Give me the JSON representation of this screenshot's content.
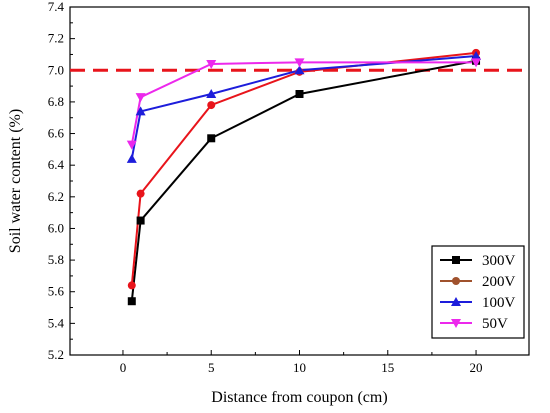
{
  "chart_data": {
    "type": "line",
    "xlabel": "Distance from coupon (cm)",
    "ylabel": "Soil water content (%)",
    "xlim": [
      -3,
      23
    ],
    "ylim": [
      5.2,
      7.4
    ],
    "xticks": [
      0,
      5,
      10,
      15,
      20
    ],
    "yticks": [
      5.2,
      5.4,
      5.6,
      5.8,
      6.0,
      6.2,
      6.4,
      6.6,
      6.8,
      7.0,
      7.2,
      7.4
    ],
    "reference_line": {
      "y": 7.0,
      "color": "#e8141b",
      "style": "dashed"
    },
    "legend_position": "bottom-right",
    "grid": false,
    "series": [
      {
        "name": "300V",
        "color": "#000000",
        "marker": "square",
        "x": [
          0.5,
          1,
          5,
          10,
          20
        ],
        "y": [
          5.54,
          6.05,
          6.57,
          6.85,
          7.06
        ]
      },
      {
        "name": "200V",
        "color": "#e8141b",
        "marker": "circle",
        "legend_color": "#a0522d",
        "x": [
          0.5,
          1,
          5,
          10,
          20
        ],
        "y": [
          5.64,
          6.22,
          6.78,
          6.99,
          7.11
        ]
      },
      {
        "name": "100V",
        "color": "#1d1ddb",
        "marker": "triangle-up",
        "x": [
          0.5,
          1,
          5,
          10,
          20
        ],
        "y": [
          6.44,
          6.74,
          6.85,
          7.0,
          7.09
        ]
      },
      {
        "name": "50V",
        "color": "#ec28ec",
        "marker": "triangle-down",
        "x": [
          0.5,
          1,
          5,
          10,
          20
        ],
        "y": [
          6.53,
          6.83,
          7.04,
          7.05,
          7.05
        ]
      }
    ]
  }
}
